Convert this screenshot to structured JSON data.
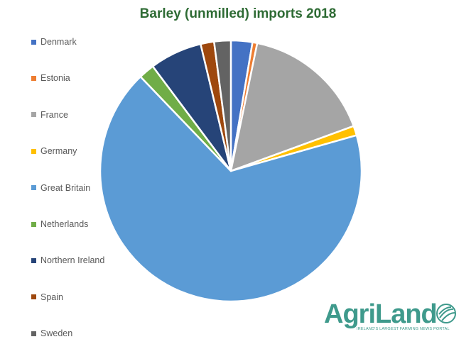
{
  "chart_data": {
    "type": "pie",
    "title": "Barley (unmilled) imports 2018",
    "legend_position": "left",
    "categories": [
      "Denmark",
      "Estonia",
      "France",
      "Germany",
      "Great Britain",
      "Netherlands",
      "Northern Ireland",
      "Spain",
      "Sweden"
    ],
    "values": [
      2.7,
      0.6,
      16.5,
      1.2,
      68.6,
      2.0,
      6.6,
      1.7,
      2.1
    ],
    "unit": "percent",
    "colors": [
      "#4472c4",
      "#ed7d31",
      "#a5a5a5",
      "#ffc000",
      "#5b9bd5",
      "#70ad47",
      "#264478",
      "#9e480e",
      "#636363"
    ]
  },
  "logo": {
    "text": "AgriLand",
    "tagline": "IRELAND'S LARGEST FARMING NEWS PORTAL",
    "color": "#3f9a8c"
  }
}
